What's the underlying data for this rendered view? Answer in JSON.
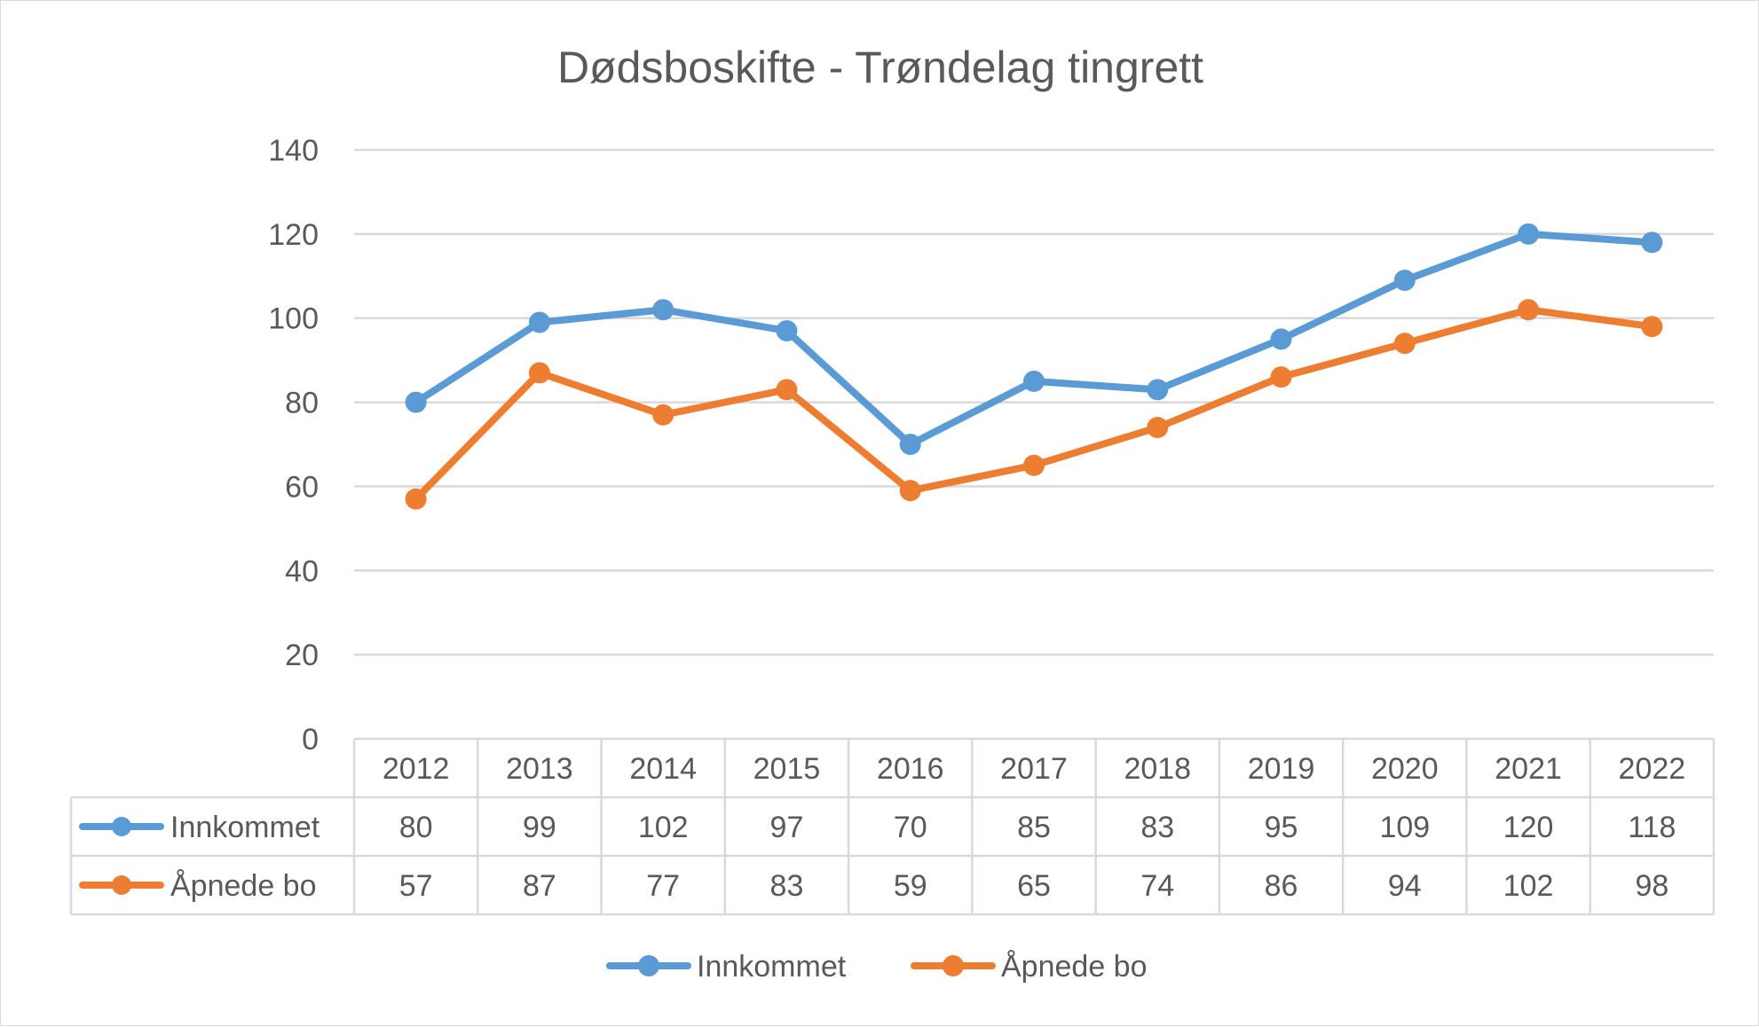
{
  "chart_data": {
    "type": "line",
    "title": "Dødsboskifte - Trøndelag tingrett",
    "xlabel": "",
    "ylabel": "",
    "ylim": [
      0,
      140
    ],
    "yticks": [
      0,
      20,
      40,
      60,
      80,
      100,
      120,
      140
    ],
    "grid": true,
    "legend_position": "bottom",
    "data_table": true,
    "categories": [
      "2012",
      "2013",
      "2014",
      "2015",
      "2016",
      "2017",
      "2018",
      "2019",
      "2020",
      "2021",
      "2022"
    ],
    "series": [
      {
        "name": "Innkommet",
        "color": "#5b9bd5",
        "values": [
          80,
          99,
          102,
          97,
          70,
          85,
          83,
          95,
          109,
          120,
          118
        ]
      },
      {
        "name": "Åpnede bo",
        "color": "#ed7d31",
        "values": [
          57,
          87,
          77,
          83,
          59,
          65,
          74,
          86,
          94,
          102,
          98
        ]
      }
    ]
  }
}
